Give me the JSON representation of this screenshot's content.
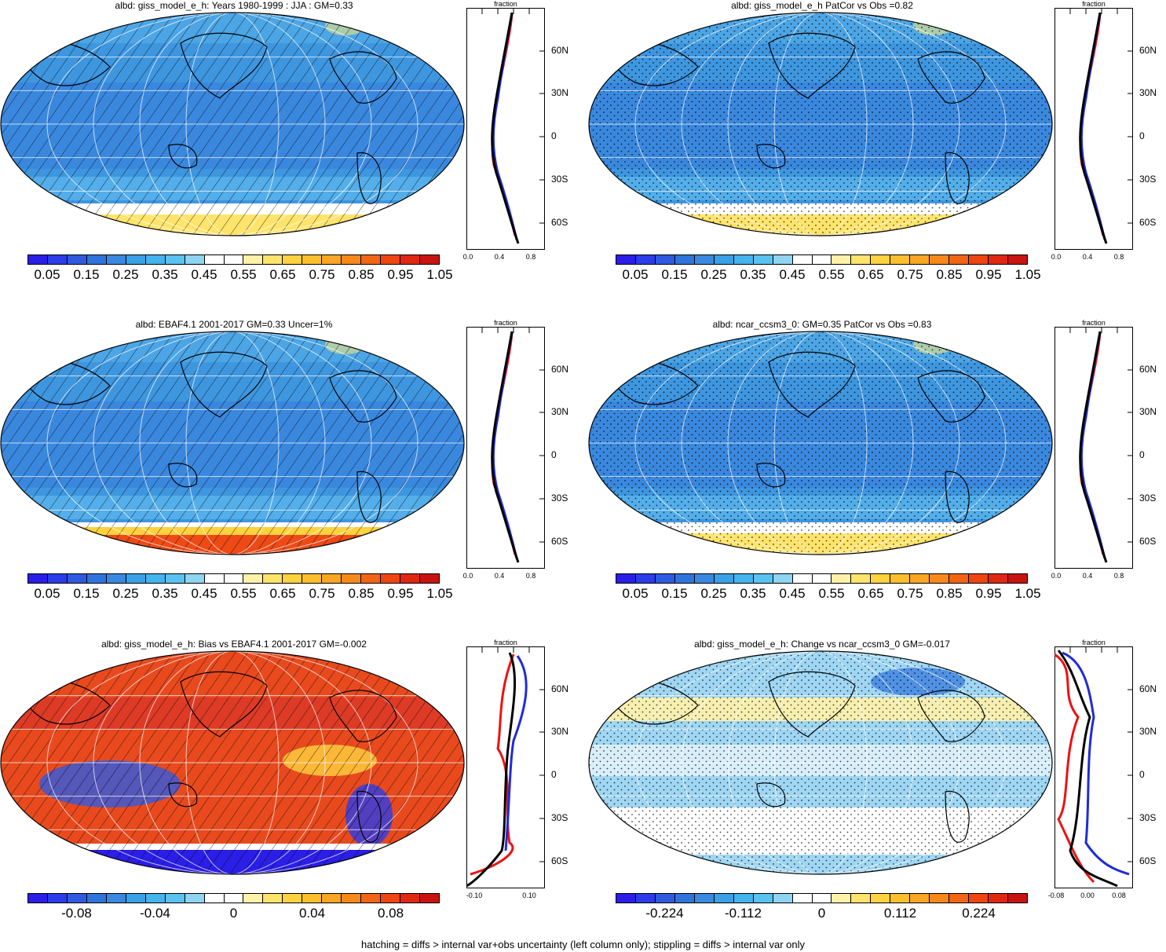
{
  "footer": "hatching = diffs > internal var+obs uncertainty (left column only); stippling = diffs > internal var only",
  "colors": {
    "abs_palette": [
      "#2b1ee6",
      "#2c3ce9",
      "#2f5ae0",
      "#2f74dd",
      "#3b88e0",
      "#3aa0e8",
      "#44b4ec",
      "#59c2ef",
      "#8fd4f1",
      "#ffffff",
      "#ffffff",
      "#fff2a8",
      "#ffe46c",
      "#ffd23f",
      "#fbbf2e",
      "#f9a625",
      "#f6891a",
      "#f26514",
      "#ee4511",
      "#e02712",
      "#c81410"
    ],
    "diff_palette": [
      "#2b1ee6",
      "#2c3ce9",
      "#2f5ae0",
      "#2f74dd",
      "#3b88e0",
      "#3aa0e8",
      "#44b4ec",
      "#59c2ef",
      "#8fd4f1",
      "#ffffff",
      "#ffffff",
      "#fff2a8",
      "#ffe46c",
      "#ffd23f",
      "#fbbf2e",
      "#f9a625",
      "#f6891a",
      "#f26514",
      "#ee4511",
      "#e02712",
      "#c81410"
    ],
    "zonal_red": "#ee1111",
    "zonal_blue": "#1f2bd9",
    "zonal_black": "#000000"
  },
  "panels": [
    {
      "id": "p1",
      "title": "albd: giss_model_e_h: Years 1980-1999 : JJA : GM=0.33",
      "map_base": "#3e96df",
      "pattern": "hatch",
      "colorbar_labels": [
        "0.05",
        "0.15",
        "0.25",
        "0.35",
        "0.45",
        "0.55",
        "0.65",
        "0.75",
        "0.85",
        "0.95",
        "1.05"
      ],
      "zonal": {
        "title": "fraction",
        "ytick_labels": [
          "60N",
          "30N",
          "0",
          "30S",
          "60S"
        ],
        "xtick_labels": [
          "0.0",
          "0.4",
          "0.8"
        ]
      }
    },
    {
      "id": "p2",
      "title": "albd: giss_model_e_h PatCor vs Obs =0.82",
      "map_base": "#3e96df",
      "pattern": "stipple",
      "colorbar_labels": [
        "0.05",
        "0.15",
        "0.25",
        "0.35",
        "0.45",
        "0.55",
        "0.65",
        "0.75",
        "0.85",
        "0.95",
        "1.05"
      ],
      "zonal": {
        "title": "fraction",
        "ytick_labels": [
          "60N",
          "30N",
          "0",
          "30S",
          "60S"
        ],
        "xtick_labels": [
          "0.0",
          "0.4",
          "0.8"
        ]
      }
    },
    {
      "id": "p3",
      "title": "albd: EBAF4.1 2001-2017 GM=0.33 Uncer=1%",
      "map_base": "#3e96df",
      "pattern": "hatch",
      "colorbar_labels": [
        "0.05",
        "0.15",
        "0.25",
        "0.35",
        "0.45",
        "0.55",
        "0.65",
        "0.75",
        "0.85",
        "0.95",
        "1.05"
      ],
      "zonal": {
        "title": "fraction",
        "ytick_labels": [
          "60N",
          "30N",
          "0",
          "30S",
          "60S"
        ],
        "xtick_labels": [
          "0.0",
          "0.4",
          "0.8"
        ]
      }
    },
    {
      "id": "p4",
      "title": "albd: ncar_ccsm3_0: GM=0.35 PatCor vs Obs =0.83",
      "map_base": "#3e96df",
      "pattern": "stipple",
      "colorbar_labels": [
        "0.05",
        "0.15",
        "0.25",
        "0.35",
        "0.45",
        "0.55",
        "0.65",
        "0.75",
        "0.85",
        "0.95",
        "1.05"
      ],
      "zonal": {
        "title": "fraction",
        "ytick_labels": [
          "60N",
          "30N",
          "0",
          "30S",
          "60S"
        ],
        "xtick_labels": [
          "0.0",
          "0.4",
          "0.8"
        ]
      }
    },
    {
      "id": "p5",
      "title": "albd: giss_model_e_h: Bias vs EBAF4.1 2001-2017 GM=-0.002",
      "map_base": "#e84a1e",
      "pattern": "hatch",
      "colorbar_labels": [
        "-0.08",
        "-0.04",
        "0",
        "0.04",
        "0.08"
      ],
      "zonal": {
        "title": "fraction",
        "ytick_labels": [
          "60N",
          "30N",
          "0",
          "30S",
          "60S"
        ],
        "xtick_labels": [
          "-0.10",
          "0.10"
        ]
      }
    },
    {
      "id": "p6",
      "title": "albd: giss_model_e_h: Change vs ncar_ccsm3_0 GM=-0.017",
      "map_base": "#9fd6f3",
      "pattern": "stipple",
      "colorbar_labels": [
        "-0.224",
        "-0.112",
        "0",
        "0.112",
        "0.224"
      ],
      "zonal": {
        "title": "fraction",
        "ytick_labels": [
          "60N",
          "30N",
          "0",
          "30S",
          "60S"
        ],
        "xtick_labels": [
          "-0.08",
          "0.00",
          "0.08"
        ]
      }
    }
  ]
}
